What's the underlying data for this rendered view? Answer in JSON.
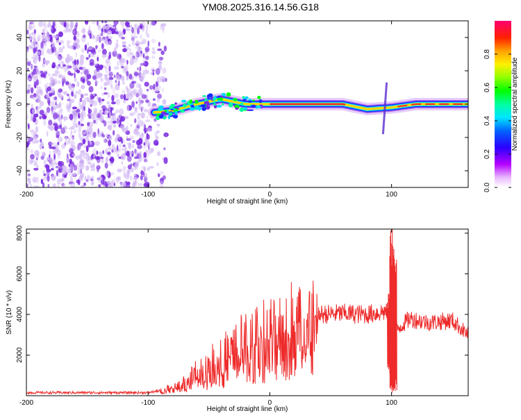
{
  "title": "YM08.2025.316.14.56.G18",
  "colors": {
    "line": "#ee2a2a",
    "scatter": "#7a2be0",
    "scatter_light": "#d2b8f5"
  },
  "chart_data": [
    {
      "type": "heatmap",
      "title": "YM08.2025.316.14.56.G18",
      "xlabel": "Height of straight line (km)",
      "ylabel": "Frequency (Hz)",
      "xlim": [
        -200,
        163
      ],
      "ylim": [
        -50,
        50
      ],
      "xticks": [
        -200,
        -100,
        0,
        100
      ],
      "yticks": [
        -40,
        -20,
        0,
        20,
        40
      ],
      "noise_region_x": [
        -200,
        -85
      ],
      "signal_track": {
        "x_start": -95,
        "x_end": 163,
        "frequency_hz": [
          {
            "x": -95,
            "y": -5
          },
          {
            "x": -80,
            "y": -4
          },
          {
            "x": -60,
            "y": 0
          },
          {
            "x": -40,
            "y": 3
          },
          {
            "x": -20,
            "y": 0
          },
          {
            "x": 0,
            "y": 0
          },
          {
            "x": 60,
            "y": 0
          },
          {
            "x": 80,
            "y": -3
          },
          {
            "x": 100,
            "y": -2
          },
          {
            "x": 120,
            "y": 0
          },
          {
            "x": 163,
            "y": 0
          }
        ]
      },
      "colorbar": {
        "label": "Normalized spectral amplitude",
        "range": [
          0,
          1
        ],
        "ticks": [
          0.0,
          0.2,
          0.4,
          0.6,
          0.8
        ],
        "tick_labels": [
          "0.0",
          "0.2",
          "0.4",
          "0.6",
          "0.8"
        ]
      }
    },
    {
      "type": "line",
      "xlabel": "Height of straight line (km)",
      "ylabel": "SNR (10 * v/v)",
      "xlim": [
        -200,
        163
      ],
      "ylim": [
        0,
        8200
      ],
      "xticks": [
        -200,
        -100,
        0,
        100
      ],
      "yticks": [
        2000,
        4000,
        6000,
        8000
      ],
      "series": [
        {
          "name": "SNR",
          "envelope": [
            {
              "x": -200,
              "y": 150
            },
            {
              "x": -100,
              "y": 150
            },
            {
              "x": -85,
              "y": 300
            },
            {
              "x": -70,
              "y": 600
            },
            {
              "x": -60,
              "y": 1100
            },
            {
              "x": -40,
              "y": 1800
            },
            {
              "x": -20,
              "y": 2600
            },
            {
              "x": 0,
              "y": 3000
            },
            {
              "x": 20,
              "y": 3700
            },
            {
              "x": 40,
              "y": 4000
            },
            {
              "x": 60,
              "y": 4050
            },
            {
              "x": 80,
              "y": 4000
            },
            {
              "x": 95,
              "y": 4150
            },
            {
              "x": 100,
              "y": 3500
            },
            {
              "x": 105,
              "y": 3300
            },
            {
              "x": 115,
              "y": 3800
            },
            {
              "x": 130,
              "y": 3600
            },
            {
              "x": 150,
              "y": 3700
            },
            {
              "x": 163,
              "y": 3000
            }
          ],
          "spikes": [
            {
              "x": 100,
              "low": 0,
              "high": 8200
            },
            {
              "x": 103,
              "low": 200,
              "high": 7900
            },
            {
              "x": 98,
              "low": 1000,
              "high": 5300
            }
          ]
        }
      ]
    }
  ]
}
